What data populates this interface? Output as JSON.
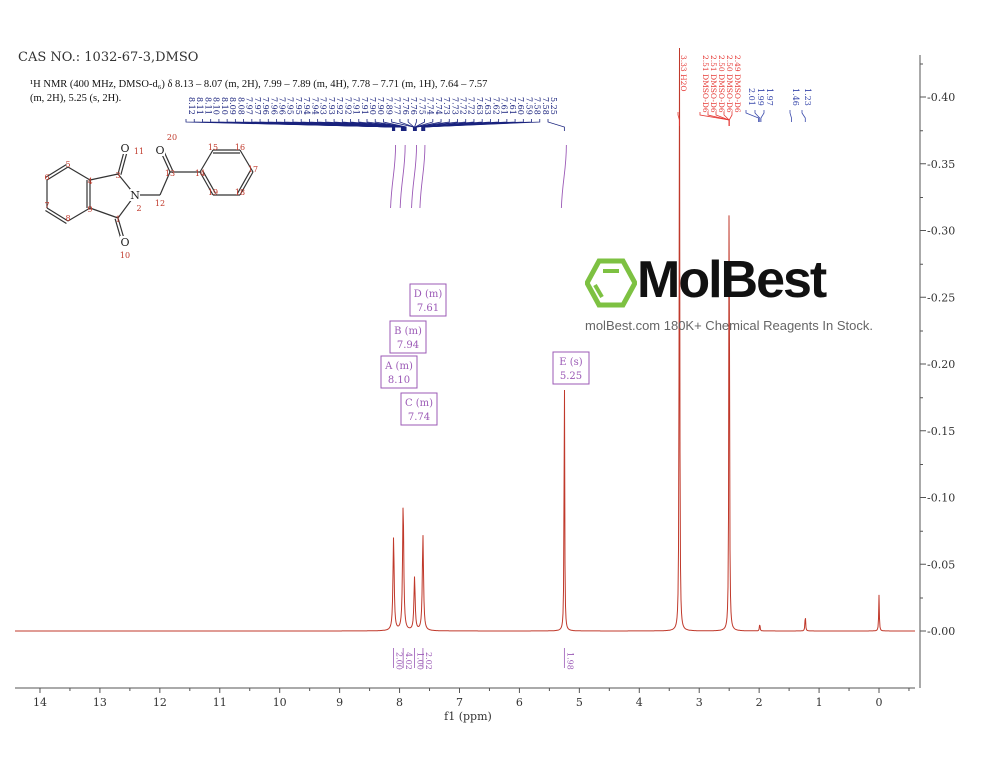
{
  "header": {
    "cas": "CAS NO.: 1032-67-3,DMSO",
    "description": "¹H NMR (400 MHz, DMSO-d₆) δ 8.13 – 8.07 (m, 2H), 7.99 – 7.89 (m, 4H), 7.78 – 7.71 (m, 1H), 7.64 – 7.57 (m, 2H), 5.25 (s, 2H)."
  },
  "watermark": {
    "logo": "MolBest",
    "tagline": "molBest.com 180K+ Chemical Reagents In Stock.",
    "logo_color": "#7dc142"
  },
  "molecule": {
    "atoms": [
      "1",
      "2",
      "3",
      "4",
      "5",
      "6",
      "7",
      "8",
      "9",
      "10",
      "11",
      "12",
      "13",
      "14",
      "15",
      "16",
      "17",
      "18",
      "19",
      "20"
    ],
    "heteroatoms": {
      "N": "N",
      "O": "O"
    }
  },
  "chart_data": {
    "type": "line",
    "title": "",
    "xlabel": "f1 (ppm)",
    "ylabel": "",
    "xlim": [
      14.4,
      -0.6
    ],
    "ylim": [
      -0.04,
      0.43
    ],
    "x_reversed": true,
    "xticks": [
      "14",
      "13",
      "12",
      "11",
      "10",
      "9",
      "8",
      "7",
      "6",
      "5",
      "4",
      "3",
      "2",
      "1",
      "0"
    ],
    "yticks": [
      "-0.00",
      "-0.05",
      "-0.10",
      "-0.15",
      "-0.20",
      "-0.25",
      "-0.30",
      "-0.35",
      "-0.40"
    ],
    "grid": false,
    "colors": {
      "spectrum": "#c0392b",
      "peak_labels": "#1a237e",
      "solvent_labels": "#e53935",
      "integrals": "#9b59b6",
      "boxes": "#9b59b6"
    },
    "peaks": [
      {
        "ppm": 8.1,
        "height": 0.07
      },
      {
        "ppm": 7.94,
        "height": 0.096
      },
      {
        "ppm": 7.75,
        "height": 0.04
      },
      {
        "ppm": 7.61,
        "height": 0.072
      },
      {
        "ppm": 5.25,
        "height": 0.205
      },
      {
        "ppm": 3.33,
        "height": 0.47
      },
      {
        "ppm": 2.5,
        "height": 0.385
      },
      {
        "ppm": 1.99,
        "height": 0.006
      },
      {
        "ppm": 1.23,
        "height": 0.013
      },
      {
        "ppm": 0.0,
        "height": 0.027
      }
    ],
    "peak_labels_aromatic": [
      "8.12",
      "8.11",
      "8.11",
      "8.10",
      "8.10",
      "8.09",
      "8.08",
      "7.97",
      "7.97",
      "7.96",
      "7.96",
      "7.96",
      "7.95",
      "7.95",
      "7.94",
      "7.94",
      "7.93",
      "7.93",
      "7.92",
      "7.92",
      "7.91",
      "7.91",
      "7.90",
      "7.90",
      "7.89",
      "7.77",
      "7.76",
      "7.76",
      "7.75",
      "7.74",
      "7.74",
      "7.73",
      "7.73",
      "7.72",
      "7.72",
      "7.63",
      "7.63",
      "7.62",
      "7.61",
      "7.61",
      "7.60",
      "7.59",
      "7.58",
      "7.58",
      "5.25"
    ],
    "peak_labels_solvent": [
      "3.33 H2O",
      "2.51 DMSO-D6",
      "2.51 DMSO-D6",
      "2.50 DMSO-D6",
      "2.50 DMSO-D6",
      "2.49 DMSO-D6"
    ],
    "peak_labels_other": [
      "2.01",
      "1.99",
      "1.97",
      "1.46",
      "1.23"
    ],
    "multiplets": [
      {
        "label": "A (m)",
        "value": "8.10"
      },
      {
        "label": "B (m)",
        "value": "7.94"
      },
      {
        "label": "C (m)",
        "value": "7.74"
      },
      {
        "label": "D (m)",
        "value": "7.61"
      },
      {
        "label": "E (s)",
        "value": "5.25"
      }
    ],
    "integrals": [
      {
        "ppm": 8.1,
        "value": "2.00"
      },
      {
        "ppm": 7.94,
        "value": "4.02"
      },
      {
        "ppm": 7.75,
        "value": "1.00"
      },
      {
        "ppm": 7.61,
        "value": "2.02"
      },
      {
        "ppm": 5.25,
        "value": "1.98"
      }
    ]
  }
}
